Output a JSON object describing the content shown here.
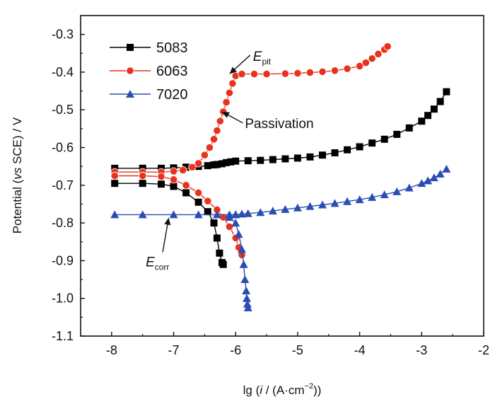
{
  "chart_data": {
    "type": "line",
    "xlabel_parts": {
      "prefix": "lg (",
      "var": "i",
      "mid": " / (A·cm",
      "sup": "−2",
      "suffix": "))"
    },
    "ylabel_parts": {
      "prefix": "Potential (",
      "var": "vs",
      "suffix": " SCE) / V"
    },
    "xlim": [
      -8.5,
      -2
    ],
    "ylim": [
      -1.1,
      -0.25
    ],
    "xticks": [
      -8,
      -7,
      -6,
      -5,
      -4,
      -3,
      -2
    ],
    "xtick_labels": [
      "-8",
      "-7",
      "-6",
      "-5",
      "-4",
      "-3",
      "-2"
    ],
    "yticks": [
      -1.1,
      -1.0,
      -0.9,
      -0.8,
      -0.7,
      -0.6,
      -0.5,
      -0.4,
      -0.3
    ],
    "ytick_labels": [
      "-1.1",
      "-1.0",
      "-0.9",
      "-0.8",
      "-0.7",
      "-0.6",
      "-0.5",
      "-0.4",
      "-0.3"
    ],
    "grid": false,
    "legend_position": "top-left",
    "series": [
      {
        "name": "5083",
        "color": "#000000",
        "marker": "square",
        "branches": [
          {
            "x": [
              -6.3,
              -6.22,
              -6.15,
              -6.08,
              -6.0,
              -5.8,
              -5.6,
              -5.4,
              -5.2,
              -5.0,
              -4.8,
              -4.6,
              -4.4,
              -4.2,
              -4.0,
              -3.8,
              -3.6,
              -3.4,
              -3.2,
              -3.0,
              -2.9,
              -2.8,
              -2.7,
              -2.6
            ],
            "y": [
              -0.645,
              -0.643,
              -0.64,
              -0.638,
              -0.636,
              -0.635,
              -0.634,
              -0.632,
              -0.63,
              -0.628,
              -0.625,
              -0.62,
              -0.614,
              -0.606,
              -0.598,
              -0.588,
              -0.578,
              -0.565,
              -0.548,
              -0.53,
              -0.515,
              -0.498,
              -0.478,
              -0.452
            ]
          },
          {
            "x": [
              -7.95,
              -7.5,
              -7.2,
              -7.0,
              -6.8,
              -6.6,
              -6.45,
              -6.35,
              -6.3
            ],
            "y": [
              -0.655,
              -0.655,
              -0.655,
              -0.654,
              -0.652,
              -0.65,
              -0.648,
              -0.646,
              -0.645
            ]
          },
          {
            "x": [
              -7.95,
              -7.5,
              -7.2,
              -7.0,
              -6.8,
              -6.6,
              -6.45,
              -6.35,
              -6.3,
              -6.26,
              -6.22,
              -6.2
            ],
            "y": [
              -0.695,
              -0.695,
              -0.697,
              -0.703,
              -0.72,
              -0.745,
              -0.77,
              -0.8,
              -0.84,
              -0.88,
              -0.905,
              -0.91
            ]
          }
        ]
      },
      {
        "name": "6063",
        "color": "#e8321f",
        "marker": "circle",
        "branches": [
          {
            "x": [
              -7.95,
              -7.5,
              -7.2,
              -7.0,
              -6.85,
              -6.7,
              -6.6,
              -6.5,
              -6.42,
              -6.35,
              -6.3,
              -6.25,
              -6.2,
              -6.15,
              -6.1,
              -6.05,
              -6.0,
              -5.9,
              -5.7,
              -5.5,
              -5.2,
              -5.0,
              -4.8,
              -4.6,
              -4.4,
              -4.2,
              -4.0,
              -3.9,
              -3.8,
              -3.7,
              -3.6,
              -3.55
            ],
            "y": [
              -0.665,
              -0.665,
              -0.665,
              -0.663,
              -0.66,
              -0.652,
              -0.642,
              -0.62,
              -0.6,
              -0.578,
              -0.555,
              -0.53,
              -0.505,
              -0.48,
              -0.455,
              -0.43,
              -0.41,
              -0.405,
              -0.405,
              -0.405,
              -0.404,
              -0.403,
              -0.401,
              -0.399,
              -0.396,
              -0.391,
              -0.384,
              -0.375,
              -0.364,
              -0.352,
              -0.34,
              -0.332
            ]
          },
          {
            "x": [
              -7.95,
              -7.5,
              -7.2,
              -7.0,
              -6.8,
              -6.6,
              -6.45,
              -6.3,
              -6.2,
              -6.1,
              -6.0,
              -5.95,
              -5.9
            ],
            "y": [
              -0.675,
              -0.675,
              -0.677,
              -0.685,
              -0.7,
              -0.72,
              -0.742,
              -0.765,
              -0.785,
              -0.81,
              -0.84,
              -0.865,
              -0.885
            ]
          }
        ]
      },
      {
        "name": "7020",
        "color": "#2a4db3",
        "marker": "triangle",
        "branches": [
          {
            "x": [
              -6.0,
              -5.9,
              -5.8,
              -5.6,
              -5.4,
              -5.2,
              -5.0,
              -4.8,
              -4.6,
              -4.4,
              -4.2,
              -4.0,
              -3.8,
              -3.6,
              -3.4,
              -3.2,
              -3.0,
              -2.9,
              -2.8,
              -2.7,
              -2.6
            ],
            "y": [
              -0.778,
              -0.776,
              -0.775,
              -0.772,
              -0.768,
              -0.764,
              -0.76,
              -0.756,
              -0.752,
              -0.748,
              -0.743,
              -0.738,
              -0.732,
              -0.725,
              -0.717,
              -0.707,
              -0.695,
              -0.688,
              -0.68,
              -0.67,
              -0.657
            ]
          },
          {
            "x": [
              -7.95,
              -7.5,
              -7.0,
              -6.6,
              -6.3,
              -6.1,
              -6.0
            ],
            "y": [
              -0.778,
              -0.778,
              -0.778,
              -0.778,
              -0.778,
              -0.778,
              -0.778
            ]
          },
          {
            "x": [
              -6.1,
              -6.0,
              -5.95,
              -5.9,
              -5.87,
              -5.85,
              -5.83,
              -5.82,
              -5.81,
              -5.8
            ],
            "y": [
              -0.785,
              -0.8,
              -0.83,
              -0.87,
              -0.91,
              -0.95,
              -0.98,
              -1.0,
              -1.015,
              -1.025
            ]
          }
        ]
      }
    ],
    "annotations": [
      {
        "id": "epit",
        "main": "E",
        "sub": "pit",
        "arrow_to": [
          -6.1,
          -0.405
        ],
        "text_at": [
          -5.72,
          -0.37
        ]
      },
      {
        "id": "passivation",
        "main": "Passivation",
        "sub": "",
        "arrow_to": [
          -6.22,
          -0.505
        ],
        "text_at": [
          -5.85,
          -0.548
        ]
      },
      {
        "id": "ecorr",
        "main": "E",
        "sub": "corr",
        "arrow_to": [
          -7.08,
          -0.786
        ],
        "text_at": [
          -7.45,
          -0.915
        ]
      }
    ]
  }
}
